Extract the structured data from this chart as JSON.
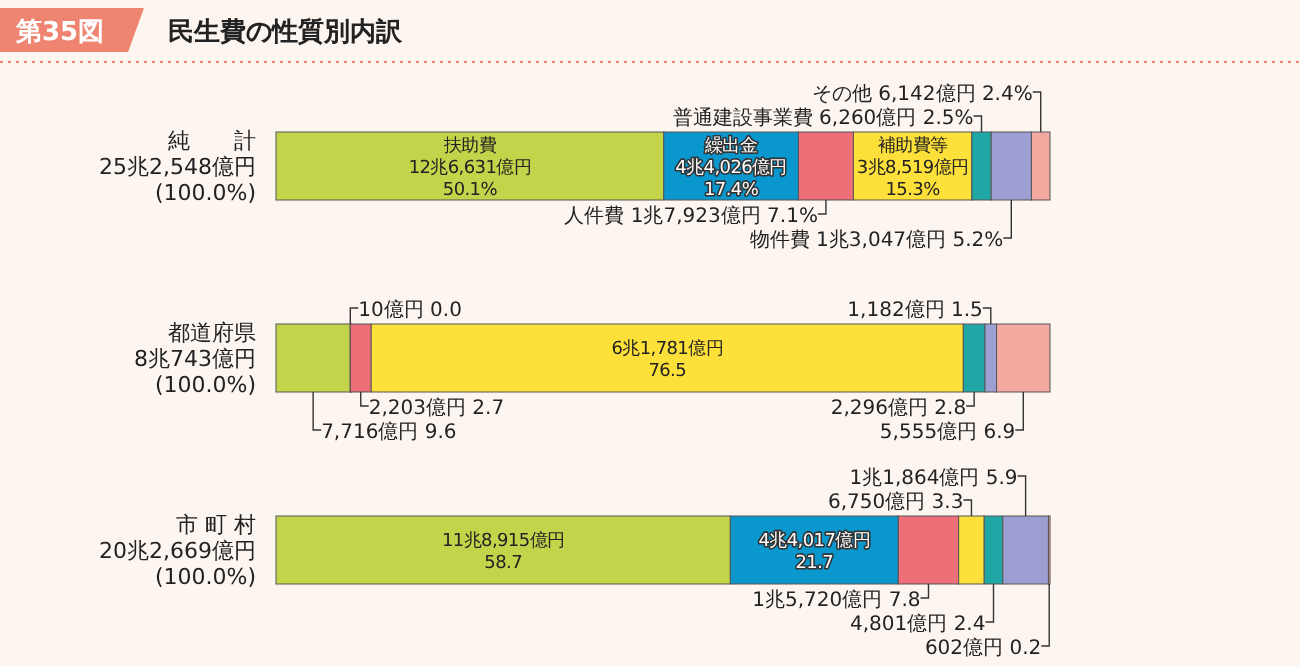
{
  "chart_data": {
    "type": "bar",
    "orientation": "horizontal",
    "stacked": true,
    "title": "民生費の性質別内訳",
    "annotations": [
      "第35図"
    ],
    "categories": [
      "純　　計\n25兆2,548億円\n(100.0%)",
      "都道府県\n8兆743億円\n(100.0%)",
      "市 町 村\n20兆2,669億円\n(100.0%)"
    ],
    "xlim": [
      0,
      100
    ],
    "series": [
      {
        "name": "扶助費",
        "color": "#c3d44b",
        "values": [
          50.1,
          9.6,
          58.7
        ],
        "value_labels": [
          "12兆6,631億円\n50.1%",
          "7,716億円 9.6",
          "11兆8,915億円\n58.7"
        ]
      },
      {
        "name": "繰出金",
        "color": "#0a97cd",
        "values": [
          17.4,
          0.0,
          21.7
        ],
        "value_labels": [
          "4兆4,026億円\n17.4%",
          "10億円 0.0",
          "4兆4,017億円\n21.7"
        ]
      },
      {
        "name": "人件費",
        "color": "#ef6f78",
        "values": [
          7.1,
          2.7,
          7.8
        ],
        "value_labels": [
          "1兆7,923億円 7.1%",
          "2,203億円 2.7",
          "1兆5,720億円 7.8"
        ]
      },
      {
        "name": "補助費等",
        "color": "#fde03a",
        "values": [
          15.3,
          76.5,
          3.3
        ],
        "value_labels": [
          "3兆8,519億円\n15.3%",
          "6兆1,781億円\n76.5",
          "6,750億円 3.3"
        ]
      },
      {
        "name": "普通建設事業費",
        "color": "#1ea7a5",
        "values": [
          2.5,
          2.8,
          2.4
        ],
        "value_labels": [
          "6,260億円 2.5%",
          "2,296億円 2.8",
          "4,801億円 2.4"
        ]
      },
      {
        "name": "物件費",
        "color": "#9d9fd3",
        "values": [
          5.2,
          1.5,
          5.9
        ],
        "value_labels": [
          "1兆3,047億円 5.2%",
          "1,182億円 1.5",
          "1兆1,864億円 5.9"
        ]
      },
      {
        "name": "その他",
        "color": "#f4a9a0",
        "values": [
          2.4,
          6.9,
          0.2
        ],
        "value_labels": [
          "6,142億円 2.4%",
          "5,555億円 6.9",
          "602億円 0.2"
        ]
      }
    ]
  }
}
